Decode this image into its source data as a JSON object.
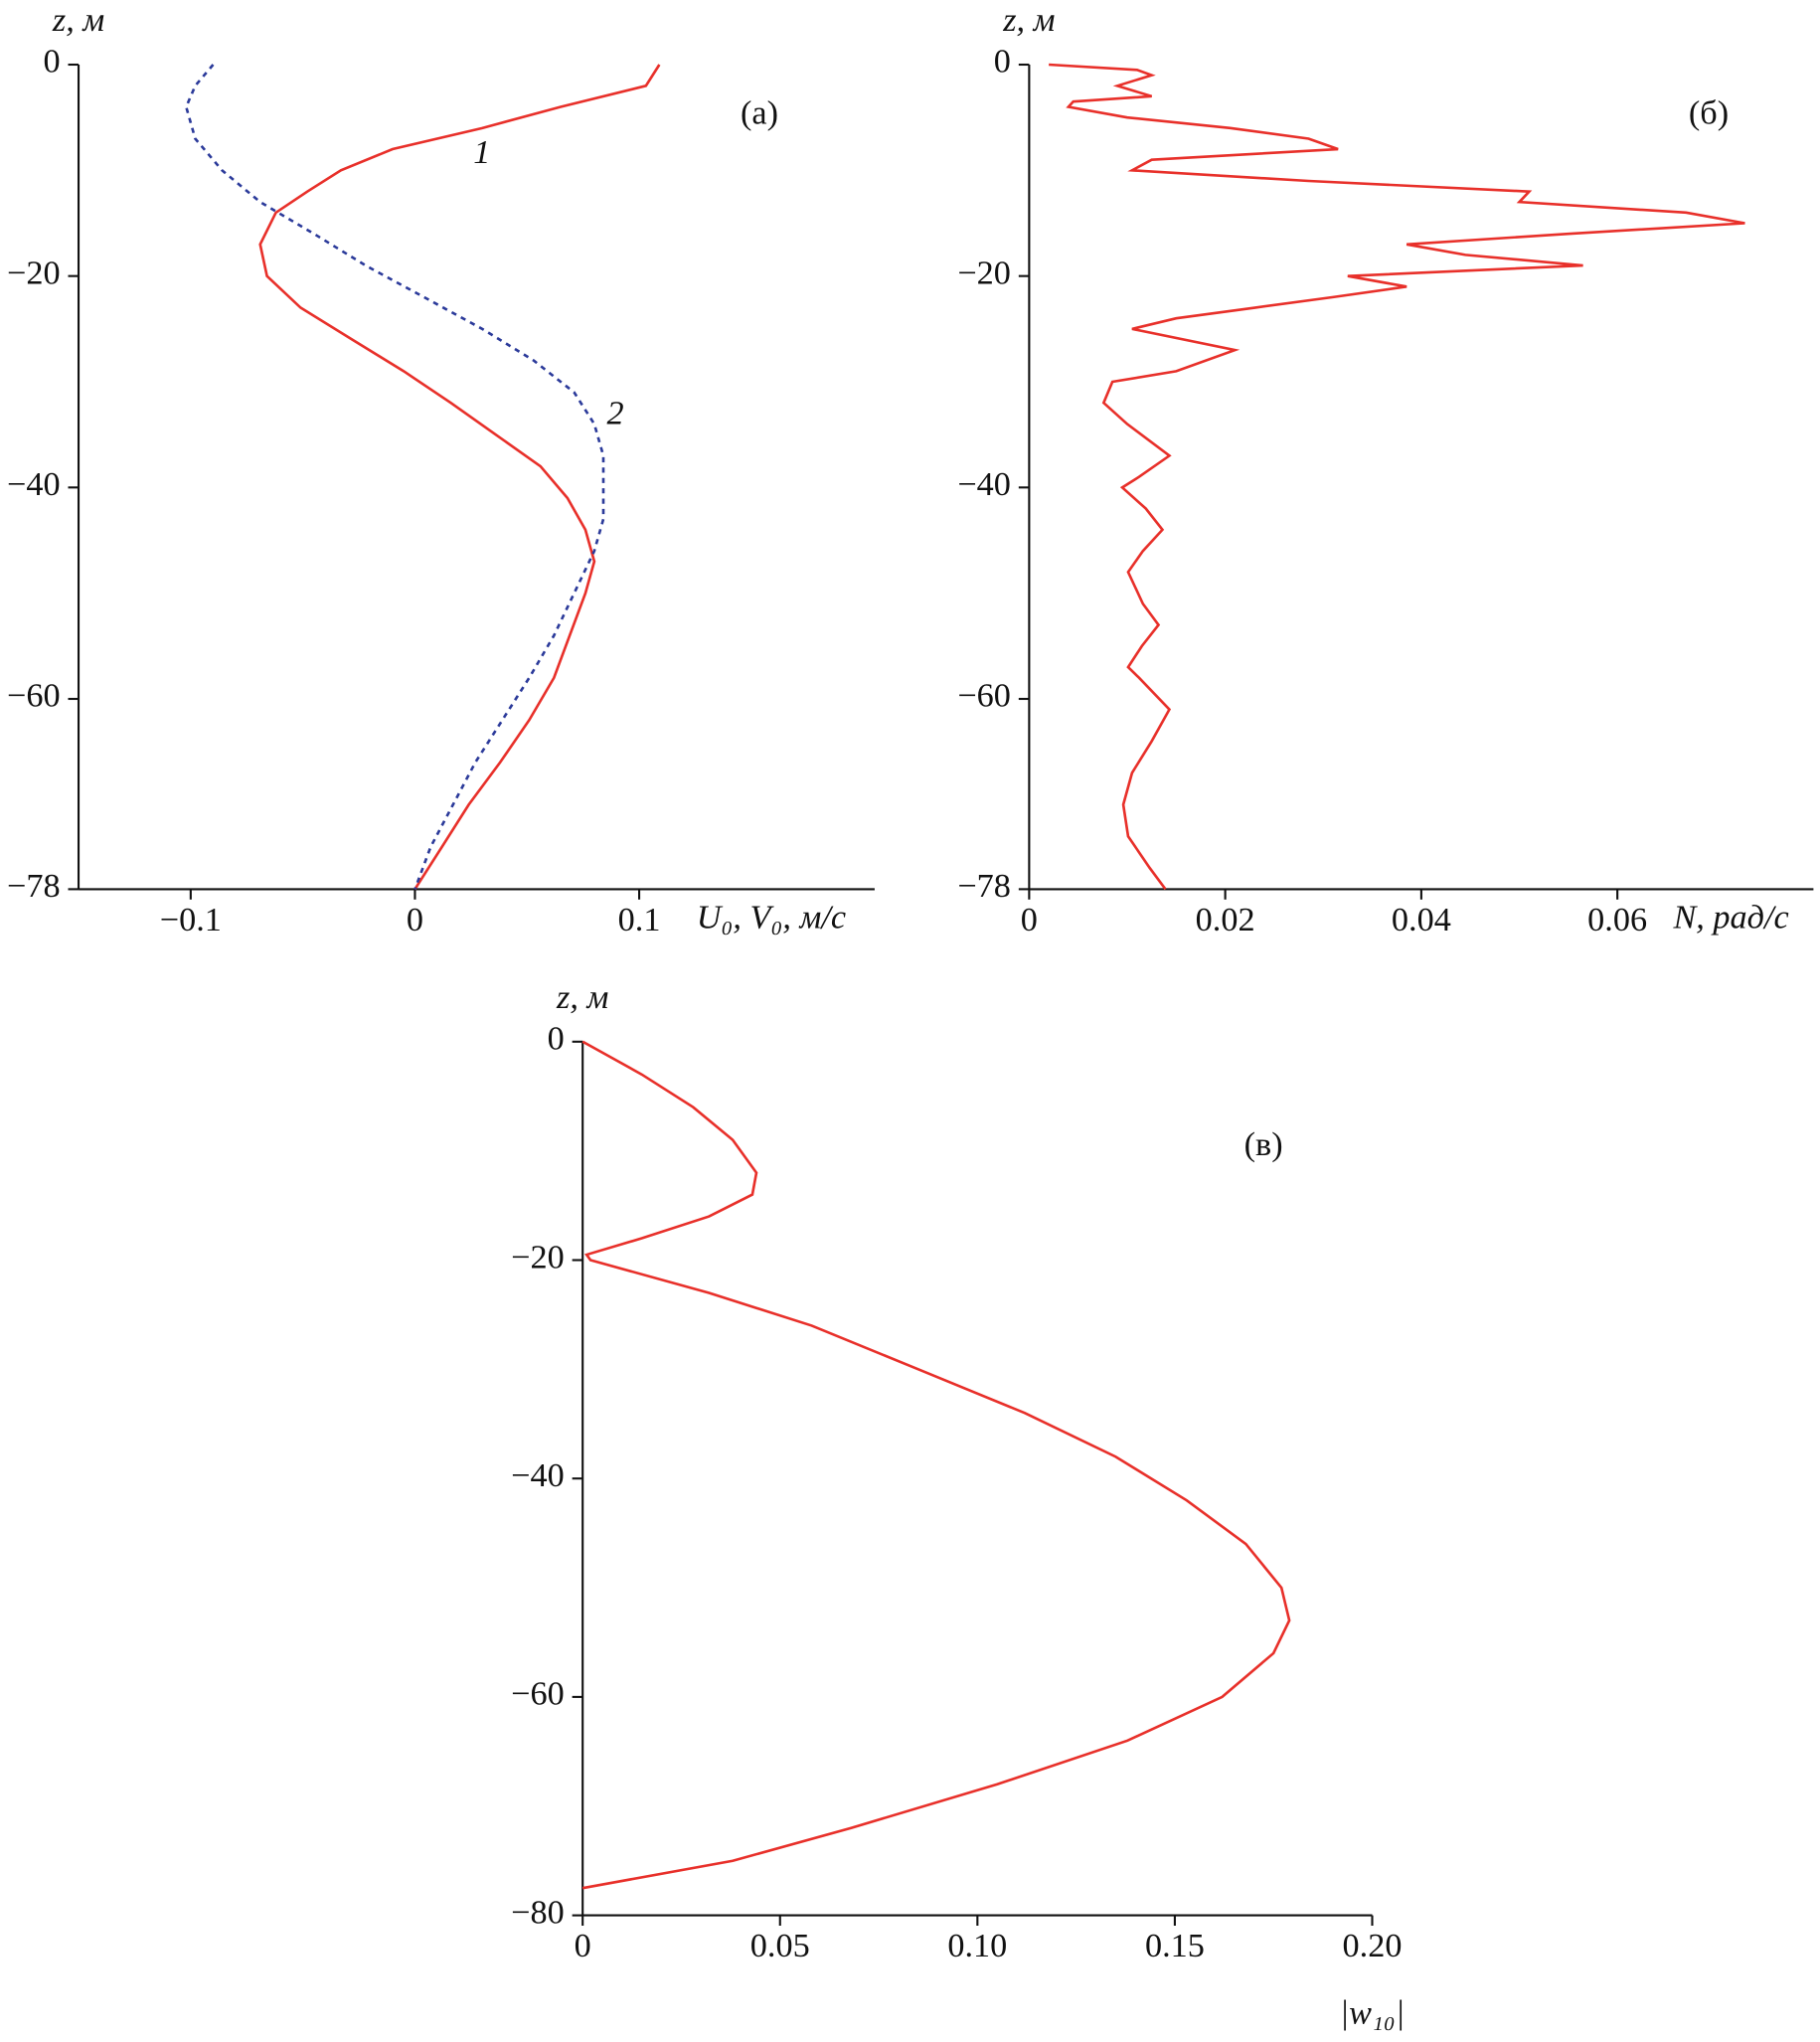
{
  "chart_data": [
    {
      "type": "line",
      "panel_label": "(а)",
      "ylabel": "z, м",
      "xlabel": "U₀, V₀, м/с",
      "xlim": [
        -0.15,
        0.205
      ],
      "ylim": [
        -78,
        0
      ],
      "xticks": [
        {
          "value": -0.1,
          "label": "−0.1"
        },
        0,
        0.1
      ],
      "yticks": [
        0,
        {
          "value": -20,
          "label": "−20"
        },
        {
          "value": -40,
          "label": "−40"
        },
        {
          "value": -60,
          "label": "−60"
        },
        {
          "value": -78,
          "label": "−78"
        }
      ],
      "series": [
        {
          "name": "1",
          "color": "#e8302a",
          "dashed": false,
          "z": [
            0,
            -2,
            -4,
            -6,
            -8,
            -10,
            -12,
            -14,
            -17,
            -20,
            -23,
            -26,
            -29,
            -32,
            -35,
            -38,
            -41,
            -44,
            -47,
            -50,
            -54,
            -58,
            -62,
            -66,
            -70,
            -74,
            -78
          ],
          "values": [
            0.109,
            0.103,
            0.065,
            0.03,
            -0.01,
            -0.033,
            -0.048,
            -0.062,
            -0.069,
            -0.066,
            -0.051,
            -0.028,
            -0.005,
            0.016,
            0.036,
            0.056,
            0.068,
            0.076,
            0.08,
            0.076,
            0.069,
            0.062,
            0.051,
            0.038,
            0.024,
            0.012,
            0
          ]
        },
        {
          "name": "2",
          "color": "#2b3a9a",
          "dashed": true,
          "z": [
            0,
            -2,
            -4,
            -7,
            -10,
            -13,
            -16,
            -19,
            -22,
            -25,
            -28,
            -31,
            -34,
            -37,
            -40,
            -43,
            -46,
            -50,
            -54,
            -58,
            -62,
            -66,
            -70,
            -74,
            -78
          ],
          "values": [
            -0.09,
            -0.098,
            -0.102,
            -0.098,
            -0.086,
            -0.069,
            -0.045,
            -0.022,
            0.004,
            0.03,
            0.053,
            0.071,
            0.08,
            0.084,
            0.084,
            0.084,
            0.08,
            0.071,
            0.062,
            0.051,
            0.039,
            0.027,
            0.017,
            0.007,
            0
          ]
        }
      ]
    },
    {
      "type": "line",
      "panel_label": "(б)",
      "ylabel": "z, м",
      "xlabel": "N, рад/с",
      "xlim": [
        0,
        0.08
      ],
      "ylim": [
        -78,
        0
      ],
      "xticks": [
        0,
        0.02,
        0.04,
        0.06
      ],
      "yticks": [
        0,
        {
          "value": -20,
          "label": "−20"
        },
        {
          "value": -40,
          "label": "−40"
        },
        {
          "value": -60,
          "label": "−60"
        },
        {
          "value": -78,
          "label": "−78"
        }
      ],
      "series": [
        {
          "color": "#e8302a",
          "dashed": false,
          "z": [
            0,
            -0.5,
            -1,
            -2,
            -3,
            -3.5,
            -4,
            -5,
            -6,
            -7,
            -8,
            -9,
            -10,
            -11,
            -12,
            -13,
            -14,
            -15,
            -16,
            -17,
            -18,
            -19,
            -20,
            -21,
            -22,
            -23,
            -24,
            -25,
            -27,
            -29,
            -30,
            -32,
            -34,
            -37,
            -39,
            -40,
            -42,
            -44,
            -46,
            -48,
            -51,
            -53,
            -55,
            -57,
            -58,
            -61,
            -64,
            -67,
            -70,
            -73,
            -76,
            -78
          ],
          "values": [
            0.002,
            0.011,
            0.0125,
            0.009,
            0.0125,
            0.0045,
            0.004,
            0.01,
            0.0205,
            0.0285,
            0.0315,
            0.0125,
            0.0105,
            0.0285,
            0.051,
            0.05,
            0.067,
            0.073,
            0.055,
            0.0385,
            0.0445,
            0.0565,
            0.0325,
            0.0385,
            0.031,
            0.023,
            0.015,
            0.0105,
            0.021,
            0.015,
            0.0085,
            0.0076,
            0.01,
            0.0143,
            0.0112,
            0.0095,
            0.0119,
            0.0136,
            0.0116,
            0.0101,
            0.0116,
            0.0132,
            0.0115,
            0.0101,
            0.0112,
            0.0143,
            0.0125,
            0.0105,
            0.0096,
            0.0101,
            0.0123,
            0.0139
          ]
        }
      ]
    },
    {
      "type": "line",
      "panel_label": "(в)",
      "ylabel": "z, м",
      "xlabel": "|w₁₀|",
      "xlim": [
        0,
        0.2
      ],
      "ylim": [
        -80,
        0
      ],
      "xticks": [
        0,
        {
          "value": 0.05,
          "label": "0.05"
        },
        {
          "value": 0.1,
          "label": "0.10"
        },
        0.15,
        {
          "value": 0.2,
          "label": "0.20"
        }
      ],
      "yticks": [
        0,
        {
          "value": -20,
          "label": "−20"
        },
        {
          "value": -40,
          "label": "−40"
        },
        {
          "value": -60,
          "label": "−60"
        },
        {
          "value": -80,
          "label": "−80"
        }
      ],
      "series": [
        {
          "color": "#e8302a",
          "dashed": false,
          "z": [
            0,
            -3,
            -6,
            -9,
            -12,
            -14,
            -16,
            -18,
            -19.5,
            -20,
            -23,
            -26,
            -30,
            -34,
            -38,
            -42,
            -46,
            -50,
            -53,
            -56,
            -60,
            -64,
            -68,
            -72,
            -75,
            -77.5
          ],
          "values": [
            0,
            0.015,
            0.028,
            0.038,
            0.044,
            0.043,
            0.032,
            0.015,
            0.001,
            0.002,
            0.032,
            0.058,
            0.085,
            0.112,
            0.135,
            0.153,
            0.168,
            0.177,
            0.179,
            0.175,
            0.162,
            0.138,
            0.105,
            0.068,
            0.038,
            0
          ]
        }
      ]
    }
  ]
}
